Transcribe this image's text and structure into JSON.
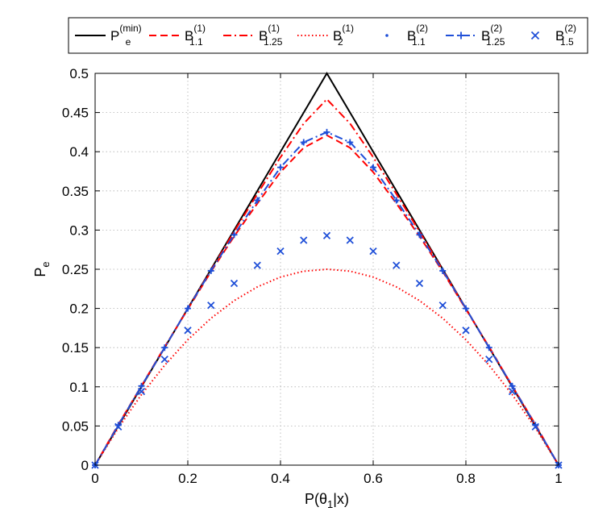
{
  "chart_data": {
    "type": "line",
    "title": "",
    "xlabel": {
      "base": "P(θ",
      "sub": "1",
      "tail": "|x)"
    },
    "ylabel": {
      "base": "P",
      "sub": "e"
    },
    "xlim": [
      0,
      1
    ],
    "ylim": [
      0,
      0.5
    ],
    "x_ticks": [
      0,
      0.2,
      0.4,
      0.6,
      0.8,
      1
    ],
    "x_tick_labels": [
      "0",
      "0.2",
      "0.4",
      "0.6",
      "0.8",
      "1"
    ],
    "y_ticks": [
      0,
      0.05,
      0.1,
      0.15,
      0.2,
      0.25,
      0.3,
      0.35,
      0.4,
      0.45,
      0.5
    ],
    "y_tick_labels": [
      "0",
      "0.05",
      "0.1",
      "0.15",
      "0.2",
      "0.25",
      "0.3",
      "0.35",
      "0.4",
      "0.45",
      "0.5"
    ],
    "grid": true,
    "legend_position": "top",
    "x": [
      0,
      0.05,
      0.1,
      0.15,
      0.2,
      0.25,
      0.3,
      0.35,
      0.4,
      0.45,
      0.5,
      0.55,
      0.6,
      0.65,
      0.7,
      0.75,
      0.8,
      0.85,
      0.9,
      0.95,
      1
    ],
    "series": [
      {
        "name": {
          "base": "P",
          "sub": "e",
          "sup": "(min)"
        },
        "color": "#000000",
        "style": "solid",
        "marker": "none",
        "values": [
          0,
          0.05,
          0.1,
          0.15,
          0.2,
          0.25,
          0.3,
          0.35,
          0.4,
          0.45,
          0.5,
          0.45,
          0.4,
          0.35,
          0.3,
          0.25,
          0.2,
          0.15,
          0.1,
          0.05,
          0
        ]
      },
      {
        "name": {
          "base": "B",
          "sub": "1.1",
          "sup": "(1)"
        },
        "color": "#ff0000",
        "style": "dashed",
        "marker": "none",
        "values": [
          0,
          0.052,
          0.101,
          0.151,
          0.199,
          0.247,
          0.292,
          0.334,
          0.374,
          0.405,
          0.421,
          0.405,
          0.374,
          0.334,
          0.292,
          0.247,
          0.199,
          0.151,
          0.101,
          0.052,
          0
        ]
      },
      {
        "name": {
          "base": "B",
          "sub": "1.25",
          "sup": "(1)"
        },
        "color": "#ff0000",
        "style": "dashdot",
        "marker": "none",
        "values": [
          0,
          0.051,
          0.101,
          0.15,
          0.2,
          0.249,
          0.298,
          0.346,
          0.393,
          0.436,
          0.467,
          0.436,
          0.393,
          0.346,
          0.298,
          0.249,
          0.2,
          0.15,
          0.101,
          0.051,
          0
        ]
      },
      {
        "name": {
          "base": "B",
          "sub": "2",
          "sup": "(1)"
        },
        "color": "#ff0000",
        "style": "dotted",
        "marker": "none",
        "values": [
          0,
          0.0475,
          0.09,
          0.1275,
          0.16,
          0.1875,
          0.21,
          0.2275,
          0.24,
          0.2475,
          0.25,
          0.2475,
          0.24,
          0.2275,
          0.21,
          0.1875,
          0.16,
          0.1275,
          0.09,
          0.0475,
          0
        ]
      },
      {
        "name": {
          "base": "B",
          "sub": "1.1",
          "sup": "(2)"
        },
        "color": "#1f4fd8",
        "style": "none",
        "marker": "dot",
        "values": [
          0,
          0.051,
          0.101,
          0.15,
          0.2,
          0.248,
          0.294,
          0.338,
          0.38,
          0.412,
          0.424,
          0.412,
          0.38,
          0.338,
          0.294,
          0.248,
          0.2,
          0.15,
          0.101,
          0.051,
          0
        ]
      },
      {
        "name": {
          "base": "B",
          "sub": "1.25",
          "sup": "(2)"
        },
        "color": "#1f4fd8",
        "style": "dashdot",
        "marker": "plus",
        "values": [
          0,
          0.051,
          0.101,
          0.15,
          0.2,
          0.248,
          0.294,
          0.338,
          0.38,
          0.412,
          0.425,
          0.412,
          0.38,
          0.338,
          0.294,
          0.248,
          0.2,
          0.15,
          0.101,
          0.051,
          0
        ]
      },
      {
        "name": {
          "base": "B",
          "sub": "1.5",
          "sup": "(2)"
        },
        "color": "#1f4fd8",
        "style": "none",
        "marker": "x",
        "values": [
          0,
          0.049,
          0.094,
          0.135,
          0.172,
          0.204,
          0.232,
          0.255,
          0.273,
          0.287,
          0.293,
          0.287,
          0.273,
          0.255,
          0.232,
          0.204,
          0.172,
          0.135,
          0.094,
          0.049,
          0
        ]
      }
    ]
  }
}
